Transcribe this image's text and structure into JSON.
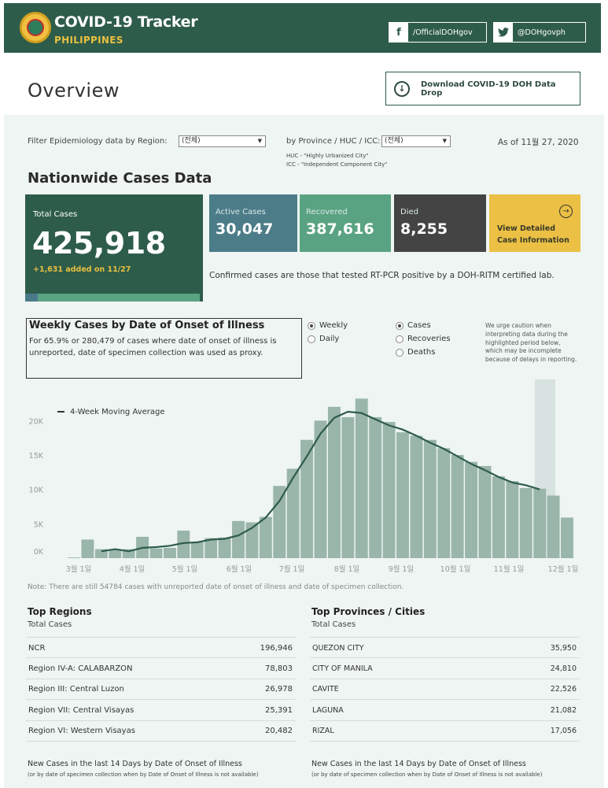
{
  "header": {
    "title": "COVID-19 Tracker",
    "subtitle": "PHILIPPINES",
    "facebook_label": "/OfficialDOHgov",
    "twitter_label": "@DOHgovph"
  },
  "overview": {
    "title": "Overview",
    "download_label": "Download COVID-19 DOH Data Drop"
  },
  "filters": {
    "region_label": "Filter Epidemiology data by Region:",
    "region_value": "(전체)",
    "province_label": "by Province / HUC / ICC:",
    "province_value": "(전체)",
    "huc_note": "HUC - \"Highly Urbanized City\"",
    "icc_note": "ICC - \"Independent Component City\"",
    "as_of": "As of 11월 27, 2020"
  },
  "nationwide": {
    "title": "Nationwide Cases Data",
    "total_label": "Total Cases",
    "total_value": "425,918",
    "total_added": "+1,631 added on 11/27",
    "active_label": "Active Cases",
    "active_value": "30,047",
    "recovered_label": "Recovered",
    "recovered_value": "387,616",
    "died_label": "Died",
    "died_value": "8,255",
    "detail_label_1": "View Detailed",
    "detail_label_2": "Case Information",
    "confirmed_note": "Confirmed cases are those that tested RT-PCR positive by a DOH-RITM certified lab."
  },
  "weekly": {
    "title": "Weekly Cases by Date of Onset of Illness",
    "desc": "For 65.9% or 280,479 of cases where date of onset of illness is unreported, date of specimen collection was used as proxy.",
    "radio_weekly": "Weekly",
    "radio_daily": "Daily",
    "radio_cases": "Cases",
    "radio_recoveries": "Recoveries",
    "radio_deaths": "Deaths",
    "caution": "We urge caution when interpreting data during the highlighted period below, which may be incomplete because of delays in reporting."
  },
  "chart_data": {
    "type": "bar",
    "legend": "4-Week Moving Average",
    "y_ticks": [
      "20K",
      "15K",
      "10K",
      "5K",
      "0K"
    ],
    "ylim": [
      0,
      24500
    ],
    "x_labels": [
      "3월 1일",
      "4월 1일",
      "5월 1일",
      "6월 1일",
      "7월 1일",
      "8월 1일",
      "9월 1일",
      "10월 1일",
      "11월 1일",
      "12월 1일"
    ],
    "weekly_cases": [
      100,
      2700,
      1300,
      1200,
      1300,
      3100,
      1400,
      1500,
      4000,
      2300,
      2900,
      3000,
      5400,
      5200,
      6000,
      10500,
      13000,
      17200,
      20000,
      22000,
      20500,
      23200,
      20500,
      19800,
      18300,
      17800,
      17200,
      16000,
      15000,
      14000,
      13400,
      11900,
      11200,
      10200,
      10100,
      9100,
      5900
    ],
    "moving_average": [
      null,
      null,
      1000,
      1300,
      1000,
      1500,
      1600,
      1800,
      2200,
      2300,
      2700,
      2800,
      3300,
      4400,
      5900,
      8300,
      11700,
      14800,
      18100,
      20400,
      21300,
      21100,
      20200,
      19300,
      18700,
      17800,
      16800,
      15900,
      14800,
      13700,
      12800,
      11800,
      11000,
      10600,
      10000,
      null,
      null
    ],
    "note": "Note: There are still 54784 cases with unreported date of onset of illness and date of specimen collection."
  },
  "top_regions": {
    "title": "Top Regions",
    "sub": "Total Cases",
    "rows": [
      {
        "name": "NCR",
        "value": "196,946"
      },
      {
        "name": "Region IV-A: CALABARZON",
        "value": "78,803"
      },
      {
        "name": "Region III: Central Luzon",
        "value": "26,978"
      },
      {
        "name": "Region VII: Central Visayas",
        "value": "25,391"
      },
      {
        "name": "Region VI: Western Visayas",
        "value": "20,482"
      }
    ],
    "new_cases": "New Cases in the last 14 Days by Date of Onset of Illness",
    "new_cases_sub": "(or by date of specimen collection when by Date of Onset of Illness is not available)"
  },
  "top_provinces": {
    "title": "Top Provinces / Cities",
    "sub": "Total Cases",
    "rows": [
      {
        "name": "QUEZON CITY",
        "value": "35,950"
      },
      {
        "name": "CITY OF MANILA",
        "value": "24,810"
      },
      {
        "name": "CAVITE",
        "value": "22,526"
      },
      {
        "name": "LAGUNA",
        "value": "21,082"
      },
      {
        "name": "RIZAL",
        "value": "17,056"
      }
    ],
    "new_cases": "New Cases in the last 14 Days by Date of Onset of Illness",
    "new_cases_sub": "(or by date of specimen collection when by Date of Onset of Illness is not available)"
  },
  "colors": {
    "header": "#2e5c4a",
    "active": "#4c7c88",
    "recovered": "#5aa382",
    "died": "#444444",
    "detail": "#ebc044",
    "bar": "#9ab5aa",
    "line": "#2e5c4a"
  }
}
